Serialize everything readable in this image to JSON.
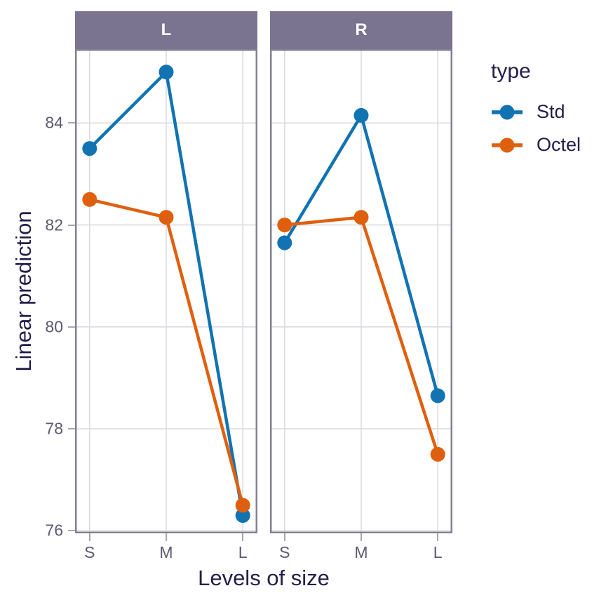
{
  "chart_data": {
    "type": "line",
    "xlabel": "Levels of size",
    "ylabel": "Linear prediction",
    "categories": [
      "S",
      "M",
      "L"
    ],
    "y_ticks": [
      76,
      78,
      80,
      82,
      84
    ],
    "ylim": [
      75.95,
      85.45
    ],
    "grid": true,
    "legend": {
      "title": "type",
      "position": "right",
      "entries": [
        {
          "name": "Std",
          "color": "#1173B2"
        },
        {
          "name": "Octel",
          "color": "#DE600E"
        }
      ]
    },
    "facets": [
      {
        "label": "L",
        "series": [
          {
            "name": "Std",
            "color": "#1173B2",
            "values": [
              83.5,
              85.0,
              76.3
            ]
          },
          {
            "name": "Octel",
            "color": "#DE600E",
            "values": [
              82.5,
              82.15,
              76.5
            ]
          }
        ]
      },
      {
        "label": "R",
        "series": [
          {
            "name": "Std",
            "color": "#1173B2",
            "values": [
              81.65,
              84.15,
              78.65
            ]
          },
          {
            "name": "Octel",
            "color": "#DE600E",
            "values": [
              82.0,
              82.15,
              77.5
            ]
          }
        ]
      }
    ]
  },
  "style": {
    "strip_bg": "#7B7490",
    "strip_text": "#FFFFFF",
    "panel_border": "#868094",
    "gridline": "#DCDBE2",
    "tick": "#A9A5B8",
    "tick_label": "#5D5971",
    "axis_title": "#231D4B"
  }
}
